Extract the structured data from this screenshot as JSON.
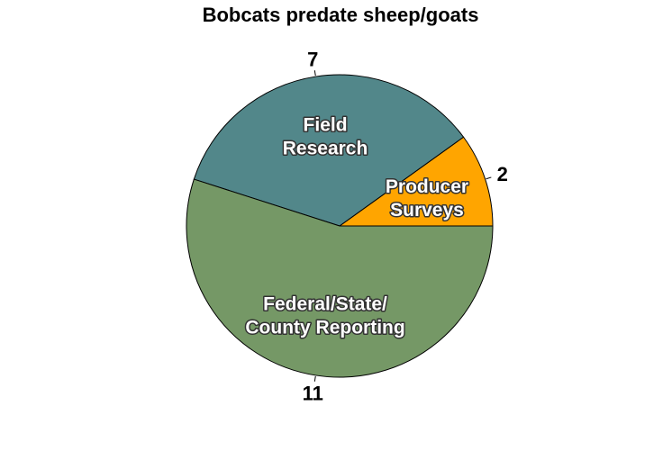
{
  "chart_data": {
    "type": "pie",
    "title": "Bobcats predate sheep/goats",
    "slices": [
      {
        "label": [
          "Producer",
          "Surveys"
        ],
        "value": 2,
        "color": "#FFA500"
      },
      {
        "label": [
          "Field",
          "Research"
        ],
        "value": 7,
        "color": "#52878A"
      },
      {
        "label": [
          "Federal/State/",
          "County Reporting"
        ],
        "value": 11,
        "color": "#759866"
      }
    ],
    "value_labels": [
      "2",
      "7",
      "11"
    ],
    "start": "right, counterclockwise",
    "outline_color": "#000000"
  }
}
